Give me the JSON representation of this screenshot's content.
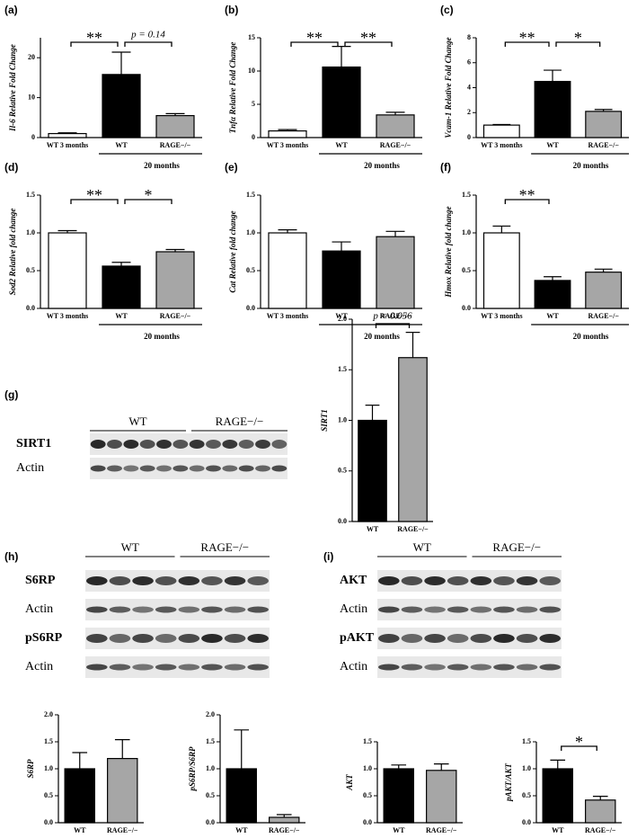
{
  "chart_data": [
    {
      "type": "bar",
      "panel": "(a)",
      "ylabel": "Il-6 Relative Fold Change",
      "categories": [
        "WT 3 months",
        "WT",
        "RAGE−/−"
      ],
      "values": [
        1,
        15.8,
        5.5
      ],
      "errors": [
        0.2,
        5.6,
        0.5
      ],
      "colors": [
        "#ffffff",
        "#000000",
        "#a6a6a6"
      ],
      "ylim": [
        0,
        25
      ],
      "yticks": [
        0,
        10,
        20
      ],
      "annotations": [
        {
          "from": 0,
          "to": 1,
          "text": "**"
        },
        {
          "from": 1,
          "to": 2,
          "text": "p = 0.14"
        }
      ],
      "group_label": "20 months"
    },
    {
      "type": "bar",
      "panel": "(b)",
      "ylabel": "Tnfα Relative Fold Change",
      "categories": [
        "WT 3 months",
        "WT",
        "RAGE−/−"
      ],
      "values": [
        1,
        10.6,
        3.4
      ],
      "errors": [
        0.2,
        3.1,
        0.4
      ],
      "colors": [
        "#ffffff",
        "#000000",
        "#a6a6a6"
      ],
      "ylim": [
        0,
        15
      ],
      "yticks": [
        0,
        5,
        10,
        15
      ],
      "annotations": [
        {
          "from": 0,
          "to": 1,
          "text": "**"
        },
        {
          "from": 1,
          "to": 2,
          "text": "**"
        }
      ],
      "group_label": "20 months"
    },
    {
      "type": "bar",
      "panel": "(c)",
      "ylabel": "Vcam-1 Relative Fold Change",
      "categories": [
        "WT 3 months",
        "WT",
        "RAGE−/−"
      ],
      "values": [
        1,
        4.5,
        2.1
      ],
      "errors": [
        0.05,
        0.9,
        0.15
      ],
      "colors": [
        "#ffffff",
        "#000000",
        "#a6a6a6"
      ],
      "ylim": [
        0,
        8
      ],
      "yticks": [
        0,
        2,
        4,
        6,
        8
      ],
      "annotations": [
        {
          "from": 0,
          "to": 1,
          "text": "**"
        },
        {
          "from": 1,
          "to": 2,
          "text": "*"
        }
      ],
      "group_label": "20 months"
    },
    {
      "type": "bar",
      "panel": "(d)",
      "ylabel": "Sod2 Relative fold change",
      "categories": [
        "WT 3 months",
        "WT",
        "RAGE−/−"
      ],
      "values": [
        1.0,
        0.56,
        0.75
      ],
      "errors": [
        0.03,
        0.05,
        0.03
      ],
      "colors": [
        "#ffffff",
        "#000000",
        "#a6a6a6"
      ],
      "ylim": [
        0,
        1.5
      ],
      "yticks": [
        {
          "value": 0,
          "label": "0.0"
        },
        0.5,
        {
          "value": 1,
          "label": "1.0"
        },
        1.5
      ],
      "annotations": [
        {
          "from": 0,
          "to": 1,
          "text": "**"
        },
        {
          "from": 1,
          "to": 2,
          "text": "*"
        }
      ],
      "group_label": "20 months"
    },
    {
      "type": "bar",
      "panel": "(e)",
      "ylabel": "Cat Relative fold change",
      "categories": [
        "WT 3 months",
        "WT",
        "RAGE−/−"
      ],
      "values": [
        1.0,
        0.76,
        0.95
      ],
      "errors": [
        0.04,
        0.12,
        0.07
      ],
      "colors": [
        "#ffffff",
        "#000000",
        "#a6a6a6"
      ],
      "ylim": [
        0,
        1.5
      ],
      "yticks": [
        {
          "value": 0,
          "label": "0.0"
        },
        0.5,
        {
          "value": 1,
          "label": "1.0"
        },
        1.5
      ],
      "annotations": [],
      "group_label": "20 months"
    },
    {
      "type": "bar",
      "panel": "(f)",
      "ylabel": "Hmox Relative fold change",
      "categories": [
        "WT 3 months",
        "WT",
        "RAGE−/−"
      ],
      "values": [
        1.0,
        0.37,
        0.48
      ],
      "errors": [
        0.09,
        0.05,
        0.04
      ],
      "colors": [
        "#ffffff",
        "#000000",
        "#a6a6a6"
      ],
      "ylim": [
        0,
        1.5
      ],
      "yticks": [
        {
          "value": 0,
          "label": "0.0"
        },
        0.5,
        {
          "value": 1,
          "label": "1.0"
        },
        1.5
      ],
      "annotations": [
        {
          "from": 0,
          "to": 1,
          "text": "**"
        }
      ],
      "group_label": "20 months"
    },
    {
      "type": "bar",
      "ylabel": "SIRT1",
      "categories": [
        "WT",
        "RAGE−/−"
      ],
      "values": [
        1.0,
        1.62
      ],
      "errors": [
        0.15,
        0.25
      ],
      "colors": [
        "#000000",
        "#a6a6a6"
      ],
      "ylim": [
        0,
        2
      ],
      "yticks": [
        {
          "value": 0,
          "label": "0.0"
        },
        0.5,
        {
          "value": 1,
          "label": "1.0"
        },
        1.5,
        {
          "value": 2,
          "label": "2.0"
        }
      ],
      "annotations": [
        {
          "from": 0,
          "to": 1,
          "text": "p = 0.056"
        }
      ]
    },
    {
      "type": "bar",
      "ylabel": "S6RP",
      "categories": [
        "WT",
        "RAGE−/−"
      ],
      "values": [
        1.0,
        1.19
      ],
      "errors": [
        0.3,
        0.35
      ],
      "colors": [
        "#000000",
        "#a6a6a6"
      ],
      "ylim": [
        0,
        2
      ],
      "yticks": [
        {
          "value": 0,
          "label": "0.0"
        },
        0.5,
        {
          "value": 1,
          "label": "1.0"
        },
        1.5,
        {
          "value": 2,
          "label": "2.0"
        }
      ],
      "annotations": []
    },
    {
      "type": "bar",
      "ylabel": "pS6RP/S6RP",
      "categories": [
        "WT",
        "RAGE−/−"
      ],
      "values": [
        1.0,
        0.1
      ],
      "errors": [
        0.72,
        0.05
      ],
      "colors": [
        "#000000",
        "#a6a6a6"
      ],
      "ylim": [
        0,
        2
      ],
      "yticks": [
        {
          "value": 0,
          "label": "0.0"
        },
        0.5,
        {
          "value": 1,
          "label": "1.0"
        },
        1.5,
        {
          "value": 2,
          "label": "2.0"
        }
      ],
      "annotations": []
    },
    {
      "type": "bar",
      "ylabel": "AKT",
      "categories": [
        "WT",
        "RAGE−/−"
      ],
      "values": [
        1.0,
        0.97
      ],
      "errors": [
        0.07,
        0.12
      ],
      "colors": [
        "#000000",
        "#a6a6a6"
      ],
      "ylim": [
        0,
        1.5
      ],
      "yticks": [
        {
          "value": 0,
          "label": "0.0"
        },
        0.5,
        {
          "value": 1,
          "label": "1.0"
        },
        1.5
      ],
      "annotations": []
    },
    {
      "type": "bar",
      "ylabel": "pAKT/AKT",
      "categories": [
        "WT",
        "RAGE−/−"
      ],
      "values": [
        1.0,
        0.42
      ],
      "errors": [
        0.16,
        0.07
      ],
      "colors": [
        "#000000",
        "#a6a6a6"
      ],
      "ylim": [
        0,
        1.5
      ],
      "yticks": [
        {
          "value": 0,
          "label": "0.0"
        },
        0.5,
        {
          "value": 1,
          "label": "1.0"
        },
        1.5
      ],
      "annotations": [
        {
          "from": 0,
          "to": 1,
          "text": "*"
        }
      ]
    }
  ],
  "blots": [
    {
      "panel": "(g)",
      "groups": [
        "WT",
        "RAGE−/−"
      ],
      "rows": [
        "SIRT1",
        "Actin"
      ]
    },
    {
      "panel": "(h)",
      "groups": [
        "WT",
        "RAGE−/−"
      ],
      "rows": [
        "S6RP",
        "Actin",
        "pS6RP",
        "Actin"
      ]
    },
    {
      "panel": "(i)",
      "groups": [
        "WT",
        "RAGE−/−"
      ],
      "rows": [
        "AKT",
        "Actin",
        "pAKT",
        "Actin"
      ]
    }
  ]
}
